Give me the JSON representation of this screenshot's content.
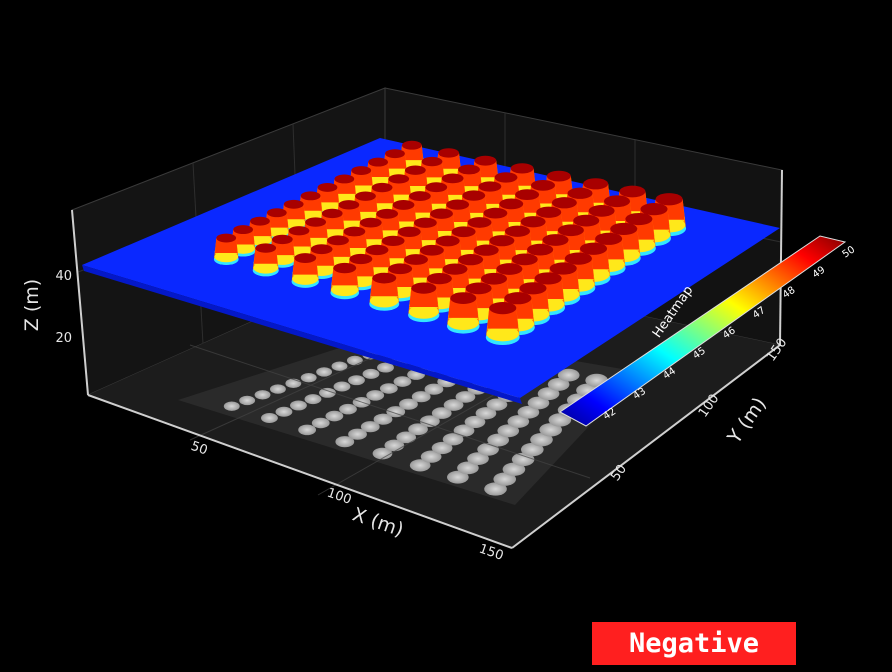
{
  "badge": {
    "text": "Negative",
    "color": "#ff1f1f"
  },
  "chart_data": {
    "type": "heatmap",
    "subtype": "3d-surface",
    "title": "",
    "xlabel": "X (m)",
    "ylabel": "Y (m)",
    "zlabel": "Z (m)",
    "x_ticks": [
      50,
      100,
      150
    ],
    "y_ticks": [
      50,
      100,
      150
    ],
    "z_ticks": [
      20,
      40
    ],
    "xlim": [
      0,
      155
    ],
    "ylim": [
      0,
      150
    ],
    "zlim": [
      0,
      50
    ],
    "base_height": 41.5,
    "peak_height": 50.2,
    "bump_grid_rows": 8,
    "bump_grid_cols": 12,
    "colorbar": {
      "title": "Heatmap",
      "colorscale": "jet",
      "range": [
        41.5,
        50.2
      ],
      "ticks": [
        42,
        43,
        44,
        45,
        46,
        47,
        48,
        49,
        50
      ]
    },
    "floor_projection": "grayscale",
    "background": "#000000",
    "grid": true
  }
}
